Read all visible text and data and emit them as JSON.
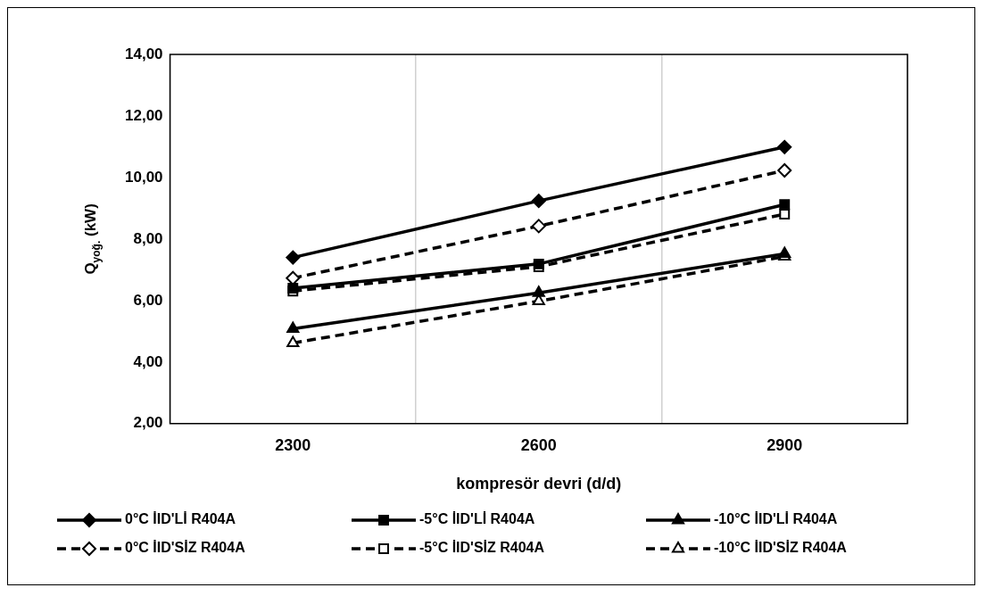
{
  "chart_data": {
    "type": "line",
    "xlabel": "kompresör devri (d/d)",
    "ylabel": "Q$_{yoğ.}$ (kW)",
    "categories": [
      "2300",
      "2600",
      "2900"
    ],
    "ylim": [
      2,
      14
    ],
    "yticks": [
      {
        "value": 2,
        "label": "2,00"
      },
      {
        "value": 4,
        "label": "4,00"
      },
      {
        "value": 6,
        "label": "6,00"
      },
      {
        "value": 8,
        "label": "8,00"
      },
      {
        "value": 10,
        "label": "10,00"
      },
      {
        "value": 12,
        "label": "12,00"
      },
      {
        "value": 14,
        "label": "14,00"
      }
    ],
    "grid": "x",
    "legend": "bottom",
    "series": [
      {
        "name": "0°C İID'Lİ R404A",
        "color": "#000000",
        "marker": "diamond",
        "line_style": "solid",
        "values": [
          7.4,
          9.24,
          10.99
        ]
      },
      {
        "name": "-5°C İID'Lİ R404A",
        "color": "#000000",
        "marker": "square",
        "line_style": "solid",
        "values": [
          6.4,
          7.19,
          9.12
        ]
      },
      {
        "name": "-10°C İID'Lİ R404A",
        "color": "#000000",
        "marker": "triangle",
        "line_style": "solid",
        "values": [
          5.08,
          6.25,
          7.52
        ]
      },
      {
        "name": "0°C İID'SİZ R404A",
        "color": "#000000",
        "marker": "diamond",
        "line_style": "dashed",
        "values": [
          6.73,
          8.42,
          10.23
        ]
      },
      {
        "name": "-5°C İID'SİZ R404A",
        "color": "#000000",
        "marker": "square",
        "line_style": "dashed",
        "values": [
          6.31,
          7.1,
          8.81
        ]
      },
      {
        "name": "-10°C İID'SİZ R404A",
        "color": "#000000",
        "marker": "triangle",
        "line_style": "dashed",
        "values": [
          4.62,
          5.98,
          7.43
        ]
      }
    ]
  }
}
